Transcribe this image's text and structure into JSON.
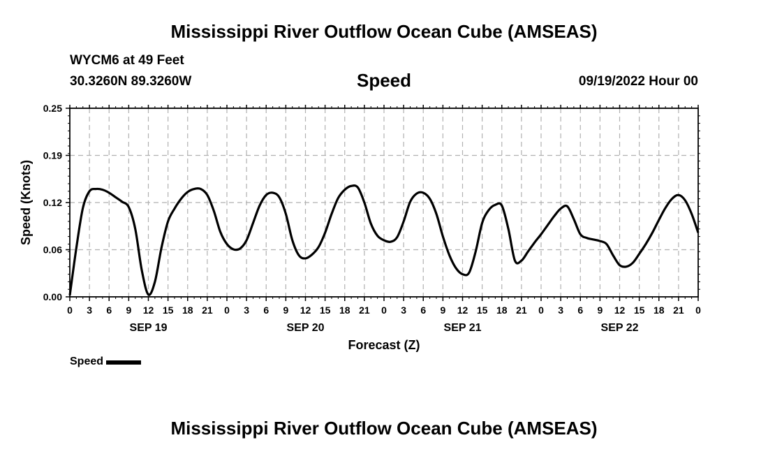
{
  "header": {
    "title": "Mississippi River Outflow Ocean Cube (AMSEAS)",
    "station": "WYCM6 at 49 Feet",
    "coords": "30.3260N  89.3260W",
    "subtitle": "Speed",
    "datetime": "09/19/2022 Hour 00"
  },
  "footer": {
    "title": "Mississippi River Outflow Ocean Cube (AMSEAS)"
  },
  "chart_data": {
    "type": "line",
    "title": "Speed",
    "xlabel": "Forecast (Z)",
    "ylabel": "Speed (Knots)",
    "ylim": [
      0,
      0.25
    ],
    "yticks": [
      "0.00",
      "0.06",
      "0.12",
      "0.19",
      "0.25"
    ],
    "ytick_values": [
      0,
      0.0625,
      0.125,
      0.1875,
      0.25
    ],
    "xlim_hours": [
      0,
      96
    ],
    "xtick_labels": [
      "0",
      "3",
      "6",
      "9",
      "12",
      "15",
      "18",
      "21",
      "0",
      "3",
      "6",
      "9",
      "12",
      "15",
      "18",
      "21",
      "0",
      "3",
      "6",
      "9",
      "12",
      "15",
      "18",
      "21",
      "0",
      "3",
      "6",
      "9",
      "12",
      "15",
      "18",
      "21",
      "0"
    ],
    "day_labels": [
      {
        "label": "SEP 19",
        "hour": 12
      },
      {
        "label": "SEP 20",
        "hour": 36
      },
      {
        "label": "SEP 21",
        "hour": 60
      },
      {
        "label": "SEP 22",
        "hour": 84
      }
    ],
    "grid": true,
    "legend_position": "bottom-left",
    "series": [
      {
        "name": "Speed",
        "color": "#000000",
        "x_hours": [
          0,
          1,
          2,
          3,
          4,
          5,
          6,
          7,
          8,
          9,
          10,
          11,
          12,
          13,
          14,
          15,
          16,
          17,
          18,
          19,
          20,
          21,
          22,
          23,
          24,
          25,
          26,
          27,
          28,
          29,
          30,
          31,
          32,
          33,
          34,
          35,
          36,
          37,
          38,
          39,
          40,
          41,
          42,
          43,
          44,
          45,
          46,
          47,
          48,
          49,
          50,
          51,
          52,
          53,
          54,
          55,
          56,
          57,
          58,
          59,
          60,
          61,
          62,
          63,
          64,
          65,
          66,
          67,
          68,
          69,
          70,
          71,
          72,
          73,
          74,
          75,
          76,
          77,
          78,
          79,
          80,
          81,
          82,
          83,
          84,
          85,
          86,
          87,
          88,
          89,
          90,
          91,
          92,
          93,
          94,
          95,
          96
        ],
        "values": [
          0.002,
          0.065,
          0.118,
          0.14,
          0.143,
          0.142,
          0.138,
          0.132,
          0.126,
          0.119,
          0.09,
          0.035,
          0.003,
          0.02,
          0.065,
          0.1,
          0.117,
          0.13,
          0.139,
          0.143,
          0.143,
          0.135,
          0.114,
          0.086,
          0.07,
          0.063,
          0.064,
          0.075,
          0.098,
          0.121,
          0.135,
          0.138,
          0.132,
          0.11,
          0.075,
          0.055,
          0.051,
          0.056,
          0.066,
          0.085,
          0.11,
          0.131,
          0.142,
          0.147,
          0.145,
          0.125,
          0.097,
          0.081,
          0.075,
          0.073,
          0.079,
          0.1,
          0.126,
          0.137,
          0.138,
          0.13,
          0.11,
          0.08,
          0.055,
          0.038,
          0.03,
          0.032,
          0.06,
          0.098,
          0.115,
          0.122,
          0.121,
          0.09,
          0.048,
          0.048,
          0.06,
          0.072,
          0.083,
          0.095,
          0.107,
          0.117,
          0.12,
          0.103,
          0.083,
          0.078,
          0.076,
          0.074,
          0.07,
          0.055,
          0.042,
          0.04,
          0.045,
          0.057,
          0.07,
          0.085,
          0.102,
          0.118,
          0.13,
          0.135,
          0.128,
          0.11,
          0.085
        ]
      }
    ]
  }
}
